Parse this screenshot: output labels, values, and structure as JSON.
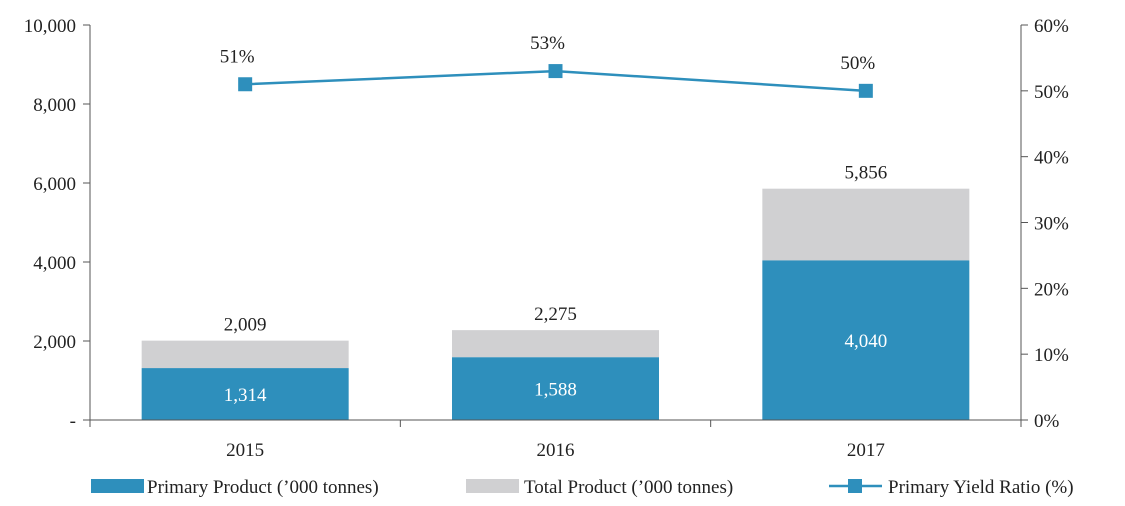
{
  "chart_data": {
    "type": "bar",
    "stacked": true,
    "categories": [
      "2015",
      "2016",
      "2017"
    ],
    "series": [
      {
        "name": "Primary Product (’000 tonnes)",
        "kind": "bar",
        "color": "#2e8fbc",
        "values": [
          1314,
          1588,
          4040
        ],
        "labels": [
          "1,314",
          "1,588",
          "4,040"
        ]
      },
      {
        "name": "Total Product (’000 tonnes)",
        "kind": "bar",
        "color": "#d0d0d2",
        "values": [
          2009,
          2275,
          5856
        ],
        "labels": [
          "2,009",
          "2,275",
          "5,856"
        ]
      },
      {
        "name": "Primary Yield Ratio (%)",
        "kind": "line",
        "axis": "right",
        "color": "#2e8fbc",
        "values": [
          51,
          53,
          50
        ],
        "labels": [
          "51%",
          "53%",
          "50%"
        ]
      }
    ],
    "y_left": {
      "ylim": [
        0,
        10000
      ],
      "ticks": [
        0,
        2000,
        4000,
        6000,
        8000,
        10000
      ],
      "tick_labels": [
        "-",
        "2,000",
        "4,000",
        "6,000",
        "8,000",
        "10,000"
      ]
    },
    "y_right": {
      "ylim": [
        0,
        60
      ],
      "ticks": [
        0,
        10,
        20,
        30,
        40,
        50,
        60
      ],
      "tick_labels": [
        "0%",
        "10%",
        "20%",
        "30%",
        "40%",
        "50%",
        "60%"
      ]
    },
    "grid": false,
    "legend": "bottom"
  }
}
